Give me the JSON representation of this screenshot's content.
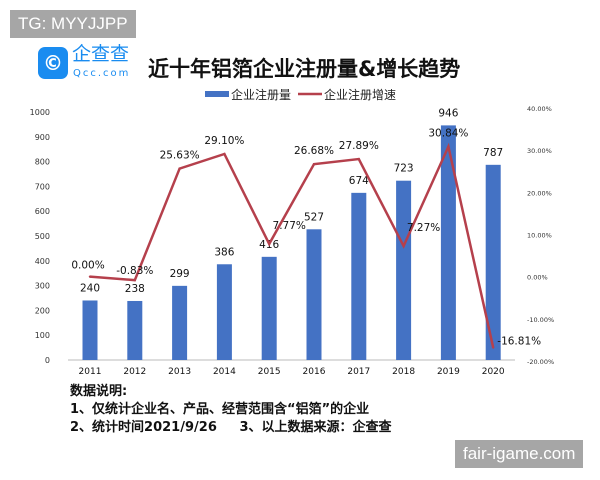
{
  "watermarks": {
    "top_left": "TG: MYYJJPP",
    "bottom_right": "fair-igame.com"
  },
  "logo": {
    "name": "企查查",
    "sub": "Qcc.com",
    "color": "#1a8cf0"
  },
  "notes": {
    "heading": "数据说明:",
    "line1": "1、仅统计企业名、产品、经营范围含“铝箔”的企业",
    "line2": "2、统计时间2021/9/26     3、以上数据来源：企查查"
  },
  "chart_data": {
    "type": "bar+line",
    "title": "近十年铝箔企业注册量&增长趋势",
    "categories": [
      "2011",
      "2012",
      "2013",
      "2014",
      "2015",
      "2016",
      "2017",
      "2018",
      "2019",
      "2020"
    ],
    "series": [
      {
        "name": "企业注册量",
        "type": "bar",
        "axis": "left",
        "color": "#4472c4",
        "values": [
          240,
          238,
          299,
          386,
          416,
          527,
          674,
          723,
          946,
          787
        ],
        "labels": [
          "240",
          "238",
          "299",
          "386",
          "416",
          "527",
          "674",
          "723",
          "946",
          "787"
        ]
      },
      {
        "name": "企业注册增速",
        "type": "line",
        "axis": "right",
        "color": "#b5404c",
        "values": [
          0.0,
          -0.83,
          25.63,
          29.1,
          7.77,
          26.68,
          27.89,
          7.27,
          30.84,
          -16.81
        ],
        "labels": [
          "0.00%",
          "-0.83%",
          "25.63%",
          "29.10%",
          "7.77%",
          "26.68%",
          "27.89%",
          "7.27%",
          "30.84%",
          "-16.81%"
        ]
      }
    ],
    "left_axis": {
      "range": [
        0,
        1000
      ],
      "ticks": [
        "0",
        "100",
        "200",
        "300",
        "400",
        "500",
        "600",
        "700",
        "800",
        "900",
        "1000"
      ]
    },
    "right_axis": {
      "range": [
        -20,
        40
      ],
      "ticks": [
        "-20.00%",
        "-10.00%",
        "0.00%",
        "10.00%",
        "20.00%",
        "30.00%",
        "40.00%"
      ]
    },
    "legend": "top-center",
    "grid": false
  }
}
